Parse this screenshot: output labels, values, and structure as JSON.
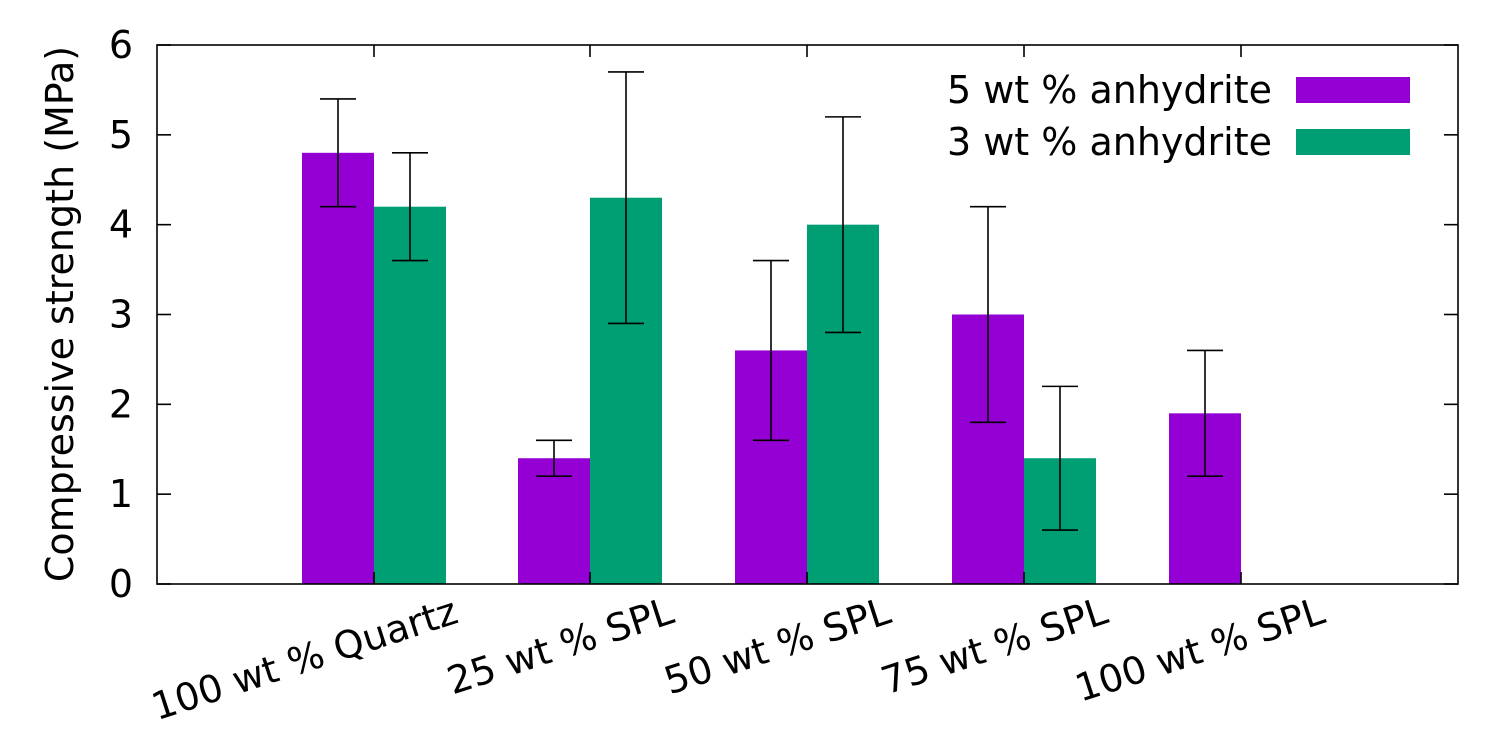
{
  "chart_data": {
    "type": "bar",
    "title": "",
    "xlabel": "",
    "ylabel": "Compressive strength (MPa)",
    "ylim": [
      0,
      6
    ],
    "yticks": [
      0,
      1,
      2,
      3,
      4,
      5,
      6
    ],
    "grid": false,
    "legend_position": "top-right",
    "categories": [
      "100 wt % Quartz",
      "25 wt % SPL",
      "50 wt % SPL",
      "75 wt % SPL",
      "100 wt % SPL"
    ],
    "series": [
      {
        "name": "5 wt % anhydrite",
        "color": "#9400D3",
        "values": [
          4.8,
          1.4,
          2.6,
          3.0,
          1.9
        ],
        "error_low": [
          4.2,
          1.2,
          1.6,
          1.8,
          1.2
        ],
        "error_high": [
          5.4,
          1.6,
          3.6,
          4.2,
          2.6
        ]
      },
      {
        "name": "3 wt % anhydrite",
        "color": "#009E73",
        "values": [
          4.2,
          4.3,
          4.0,
          1.4,
          null
        ],
        "error_low": [
          3.6,
          2.9,
          2.8,
          0.6,
          null
        ],
        "error_high": [
          4.8,
          5.7,
          5.2,
          2.2,
          null
        ]
      }
    ]
  }
}
